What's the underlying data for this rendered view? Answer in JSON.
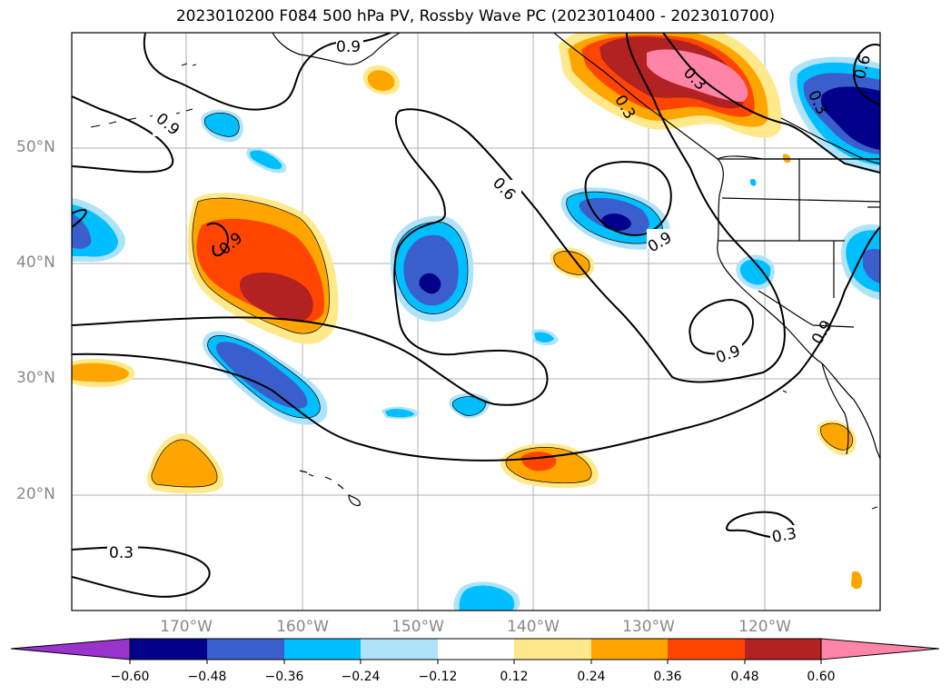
{
  "title": "2023010200 F084 500 hPa PV, Rossby Wave PC (2023010400 - 2023010700)",
  "lat_labels": [
    "50°N",
    "40°N",
    "30°N",
    "20°N"
  ],
  "lon_labels": [
    "170°W",
    "160°W",
    "150°W",
    "140°W",
    "130°W",
    "120°W"
  ],
  "colorbar": {
    "ticks": [
      "−0.60",
      "−0.48",
      "−0.36",
      "−0.24",
      "−0.12",
      "0.12",
      "0.24",
      "0.36",
      "0.48",
      "0.60"
    ],
    "colors": [
      "#9933cc",
      "#00008b",
      "#3a5fcd",
      "#00bfff",
      "#aee3fa",
      "#ffffff",
      "#ffe98a",
      "#ffa500",
      "#ff4500",
      "#b22222",
      "#ff85a8"
    ]
  },
  "contour_labels": [
    "0.9",
    "0.9",
    "0.9",
    "0.6",
    "0.9",
    "0.3",
    "0.6",
    "0.3",
    "0.9",
    "0.9",
    "0.3",
    "0.3",
    "0.3"
  ],
  "colors": {
    "frame": "#000000",
    "grid": "#b0b0b0",
    "tick_label": "#888888"
  }
}
